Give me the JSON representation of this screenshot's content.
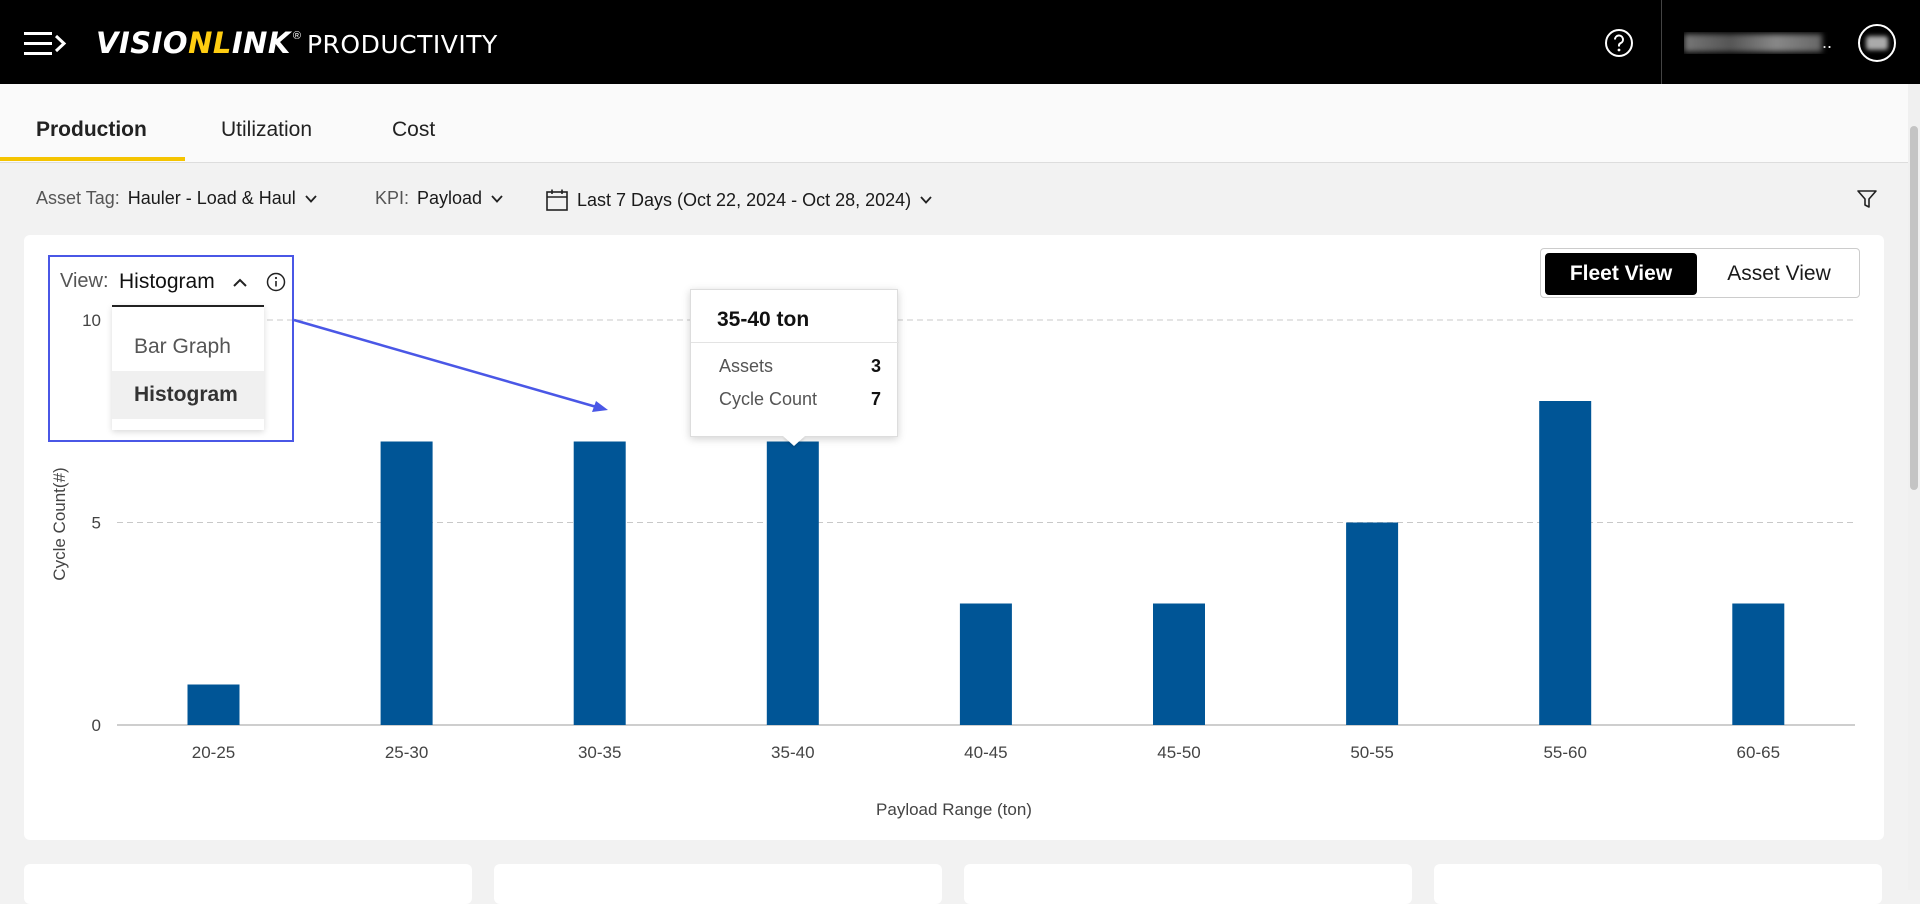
{
  "header": {
    "logo_brand_prefix": "VISIO",
    "logo_brand_accent": "NL",
    "logo_brand_suffix": "INK",
    "logo_reg": "®",
    "logo_product": "PRODUCTIVITY",
    "user_name_suffix": ".."
  },
  "tabs": [
    {
      "label": "Production",
      "active": true
    },
    {
      "label": "Utilization",
      "active": false
    },
    {
      "label": "Cost",
      "active": false
    }
  ],
  "filters": {
    "asset_tag_label": "Asset Tag:",
    "asset_tag_value": "Hauler - Load & Haul",
    "kpi_label": "KPI:",
    "kpi_value": "Payload",
    "date_range": "Last 7 Days (Oct 22, 2024 - Oct 28, 2024)"
  },
  "view": {
    "label": "View:",
    "value": "Histogram",
    "options": [
      "Bar Graph",
      "Histogram"
    ],
    "selected": "Histogram"
  },
  "view_toggle": {
    "fleet": "Fleet View",
    "asset": "Asset View",
    "active": "Fleet View"
  },
  "tooltip": {
    "title": "35-40 ton",
    "assets_label": "Assets",
    "assets_value": "3",
    "cycle_label": "Cycle Count",
    "cycle_value": "7"
  },
  "colors": {
    "bar": "#005596",
    "accent": "#ffcd11",
    "annotation": "#4a57e6"
  },
  "chart_data": {
    "type": "bar",
    "categories": [
      "20-25",
      "25-30",
      "30-35",
      "35-40",
      "40-45",
      "45-50",
      "50-55",
      "55-60",
      "60-65"
    ],
    "values": [
      1,
      7,
      7,
      7,
      3,
      3,
      5,
      8,
      3
    ],
    "xlabel": "Payload Range (ton)",
    "ylabel": "Cycle Count(#)",
    "ylim": [
      0,
      10
    ],
    "yticks": [
      0,
      5,
      10
    ],
    "grid": true
  }
}
